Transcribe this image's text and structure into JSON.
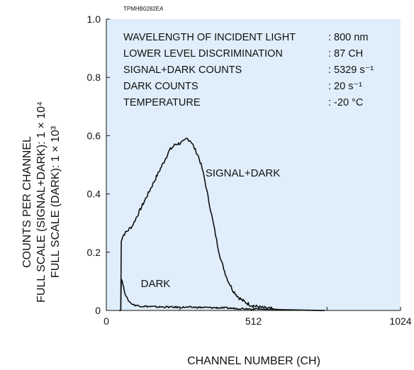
{
  "figure_code": "TPMHB0282EA",
  "colors": {
    "plot_background": "#dfeefa",
    "line": "#111111"
  },
  "y_axis_title": {
    "line1": "COUNTS PER CHANNEL",
    "line2": "FULL SCALE (SIGNAL+DARK): 1 × 10⁴",
    "line3": "FULL SCALE (DARK): 1 × 10³"
  },
  "annotations": [
    {
      "label": "WAVELENGTH OF INCIDENT LIGHT",
      "value": ": 800 nm"
    },
    {
      "label": "LOWER LEVEL DISCRIMINATION",
      "value": ": 87 CH"
    },
    {
      "label": "SIGNAL+DARK COUNTS",
      "value": ": 5329 s⁻¹"
    },
    {
      "label": "DARK COUNTS",
      "value": ": 20 s⁻¹"
    },
    {
      "label": "TEMPERATURE",
      "value": ": -20 °C"
    }
  ],
  "chart_data": {
    "type": "line",
    "title": "",
    "xlabel": "CHANNEL NUMBER (CH)",
    "ylabel": "COUNTS PER CHANNEL",
    "xlim": [
      0,
      1024
    ],
    "ylim": [
      0,
      1.0
    ],
    "x_ticks": [
      0,
      512,
      1024
    ],
    "x_minor_ticks": [
      256,
      768
    ],
    "y_ticks": [
      0,
      0.2,
      0.4,
      0.6,
      0.8,
      1.0
    ],
    "y_tick_labels": [
      "0",
      "0.2",
      "0.4",
      "0.6",
      "0.8",
      "1.0"
    ],
    "x_tick_labels": [
      "0",
      "512",
      "1024"
    ],
    "grid": false,
    "series": [
      {
        "name": "SIGNAL+DARK",
        "x": [
          45,
          50,
          52,
          56,
          60,
          70,
          80,
          90,
          100,
          120,
          140,
          160,
          180,
          200,
          220,
          240,
          260,
          270,
          280,
          290,
          295,
          300,
          310,
          320,
          330,
          340,
          350,
          360,
          370,
          380,
          390,
          400,
          420,
          440,
          460,
          480,
          500,
          520,
          540,
          560,
          580,
          600,
          620,
          640,
          660,
          700,
          760
        ],
        "y": [
          0,
          0,
          0.24,
          0.25,
          0.26,
          0.27,
          0.28,
          0.29,
          0.31,
          0.35,
          0.39,
          0.43,
          0.47,
          0.51,
          0.55,
          0.57,
          0.575,
          0.58,
          0.59,
          0.585,
          0.58,
          0.57,
          0.55,
          0.53,
          0.5,
          0.46,
          0.41,
          0.36,
          0.31,
          0.26,
          0.21,
          0.17,
          0.11,
          0.07,
          0.045,
          0.03,
          0.02,
          0.014,
          0.01,
          0.007,
          0.005,
          0.003,
          0.002,
          0.0015,
          0.001,
          0.0005,
          0
        ]
      },
      {
        "name": "DARK",
        "x": [
          45,
          50,
          52,
          55,
          60,
          65,
          70,
          80,
          90,
          100,
          120,
          140,
          160,
          180,
          200,
          250,
          300,
          350,
          400,
          450,
          500,
          550,
          600,
          650,
          700,
          760
        ],
        "y": [
          0,
          0,
          0.11,
          0.1,
          0.08,
          0.06,
          0.045,
          0.03,
          0.022,
          0.018,
          0.015,
          0.014,
          0.013,
          0.012,
          0.012,
          0.011,
          0.011,
          0.01,
          0.009,
          0.007,
          0.006,
          0.004,
          0.003,
          0.002,
          0.001,
          0
        ]
      }
    ],
    "series_labels": [
      {
        "text": "SIGNAL+DARK",
        "x": 345,
        "y": 0.46
      },
      {
        "text": "DARK",
        "x": 120,
        "y": 0.08
      }
    ]
  }
}
